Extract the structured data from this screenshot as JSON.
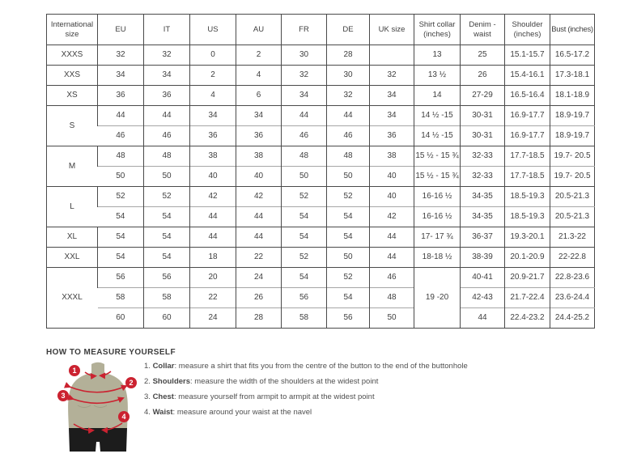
{
  "size_table": {
    "columns": [
      "International size",
      "EU",
      "IT",
      "US",
      "AU",
      "FR",
      "DE",
      "UK size",
      "Shirt collar (inches)",
      "Denim - waist",
      "Shoulder (inches)",
      "Bust (inches)"
    ],
    "rows": [
      {
        "sub": false,
        "cells": [
          {
            "t": "XXXS"
          },
          {
            "t": "32"
          },
          {
            "t": "32"
          },
          {
            "t": "0"
          },
          {
            "t": "2"
          },
          {
            "t": "30"
          },
          {
            "t": "28"
          },
          {
            "t": ""
          },
          {
            "t": "13"
          },
          {
            "t": "25"
          },
          {
            "t": "15.1-15.7"
          },
          {
            "t": "16.5-17.2"
          }
        ]
      },
      {
        "sub": false,
        "cells": [
          {
            "t": "XXS"
          },
          {
            "t": "34"
          },
          {
            "t": "34"
          },
          {
            "t": "2"
          },
          {
            "t": "4"
          },
          {
            "t": "32"
          },
          {
            "t": "30"
          },
          {
            "t": "32"
          },
          {
            "t": "13 ½"
          },
          {
            "t": "26"
          },
          {
            "t": "15.4-16.1"
          },
          {
            "t": "17.3-18.1"
          }
        ]
      },
      {
        "sub": false,
        "cells": [
          {
            "t": "XS"
          },
          {
            "t": "36"
          },
          {
            "t": "36"
          },
          {
            "t": "4"
          },
          {
            "t": "6"
          },
          {
            "t": "34"
          },
          {
            "t": "32"
          },
          {
            "t": "34"
          },
          {
            "t": "14"
          },
          {
            "t": "27-29"
          },
          {
            "t": "16.5-16.4"
          },
          {
            "t": "18.1-18.9"
          }
        ]
      },
      {
        "sub": false,
        "cells": [
          {
            "t": "S",
            "rs": 2
          },
          {
            "t": "44"
          },
          {
            "t": "44"
          },
          {
            "t": "34"
          },
          {
            "t": "34"
          },
          {
            "t": "44"
          },
          {
            "t": "44"
          },
          {
            "t": "34"
          },
          {
            "t": "14 ½ -15"
          },
          {
            "t": "30-31"
          },
          {
            "t": "16.9-17.7"
          },
          {
            "t": "18.9-19.7"
          }
        ]
      },
      {
        "sub": true,
        "cells": [
          {
            "t": "46"
          },
          {
            "t": "46"
          },
          {
            "t": "36"
          },
          {
            "t": "36"
          },
          {
            "t": "46"
          },
          {
            "t": "46"
          },
          {
            "t": "36"
          },
          {
            "t": "14 ½ -15"
          },
          {
            "t": "30-31"
          },
          {
            "t": "16.9-17.7"
          },
          {
            "t": "18.9-19.7"
          }
        ]
      },
      {
        "sub": false,
        "cells": [
          {
            "t": "M",
            "rs": 2
          },
          {
            "t": "48"
          },
          {
            "t": "48"
          },
          {
            "t": "38"
          },
          {
            "t": "38"
          },
          {
            "t": "48"
          },
          {
            "t": "48"
          },
          {
            "t": "38"
          },
          {
            "t": "15 ½ - 15 ¾"
          },
          {
            "t": "32-33"
          },
          {
            "t": "17.7-18.5"
          },
          {
            "t": "19.7- 20.5"
          }
        ]
      },
      {
        "sub": true,
        "cells": [
          {
            "t": "50"
          },
          {
            "t": "50"
          },
          {
            "t": "40"
          },
          {
            "t": "40"
          },
          {
            "t": "50"
          },
          {
            "t": "50"
          },
          {
            "t": "40"
          },
          {
            "t": "15 ½ - 15 ¾"
          },
          {
            "t": "32-33"
          },
          {
            "t": "17.7-18.5"
          },
          {
            "t": "19.7- 20.5"
          }
        ]
      },
      {
        "sub": false,
        "cells": [
          {
            "t": "L",
            "rs": 2
          },
          {
            "t": "52"
          },
          {
            "t": "52"
          },
          {
            "t": "42"
          },
          {
            "t": "42"
          },
          {
            "t": "52"
          },
          {
            "t": "52"
          },
          {
            "t": "40"
          },
          {
            "t": "16-16 ½"
          },
          {
            "t": "34-35"
          },
          {
            "t": "18.5-19.3"
          },
          {
            "t": "20.5-21.3"
          }
        ]
      },
      {
        "sub": true,
        "cells": [
          {
            "t": "54"
          },
          {
            "t": "54"
          },
          {
            "t": "44"
          },
          {
            "t": "44"
          },
          {
            "t": "54"
          },
          {
            "t": "54"
          },
          {
            "t": "42"
          },
          {
            "t": "16-16 ½"
          },
          {
            "t": "34-35"
          },
          {
            "t": "18.5-19.3"
          },
          {
            "t": "20.5-21.3"
          }
        ]
      },
      {
        "sub": false,
        "cells": [
          {
            "t": "XL"
          },
          {
            "t": "54"
          },
          {
            "t": "54"
          },
          {
            "t": "44"
          },
          {
            "t": "44"
          },
          {
            "t": "54"
          },
          {
            "t": "54"
          },
          {
            "t": "44"
          },
          {
            "t": "17- 17 ¾"
          },
          {
            "t": "36-37"
          },
          {
            "t": "19.3-20.1"
          },
          {
            "t": "21.3-22"
          }
        ]
      },
      {
        "sub": false,
        "cells": [
          {
            "t": "XXL"
          },
          {
            "t": "54"
          },
          {
            "t": "54"
          },
          {
            "t": "18"
          },
          {
            "t": "22"
          },
          {
            "t": "52"
          },
          {
            "t": "50"
          },
          {
            "t": "44"
          },
          {
            "t": "18-18 ½"
          },
          {
            "t": "38-39"
          },
          {
            "t": "20.1-20.9"
          },
          {
            "t": "22-22.8"
          }
        ]
      },
      {
        "sub": false,
        "cells": [
          {
            "t": "XXXL",
            "rs": 3
          },
          {
            "t": "56"
          },
          {
            "t": "56"
          },
          {
            "t": "20"
          },
          {
            "t": "24"
          },
          {
            "t": "54"
          },
          {
            "t": "52"
          },
          {
            "t": "46"
          },
          {
            "t": "19 -20",
            "rs": 3
          },
          {
            "t": "40-41"
          },
          {
            "t": "20.9-21.7"
          },
          {
            "t": "22.8-23.6"
          }
        ]
      },
      {
        "sub": true,
        "cells": [
          {
            "t": "58"
          },
          {
            "t": "58"
          },
          {
            "t": "22"
          },
          {
            "t": "26"
          },
          {
            "t": "56"
          },
          {
            "t": "54"
          },
          {
            "t": "48"
          },
          {
            "t": "42-43"
          },
          {
            "t": "21.7-22.4"
          },
          {
            "t": "23.6-24.4"
          }
        ]
      },
      {
        "sub": true,
        "cells": [
          {
            "t": "60"
          },
          {
            "t": "60"
          },
          {
            "t": "24"
          },
          {
            "t": "28"
          },
          {
            "t": "58"
          },
          {
            "t": "56"
          },
          {
            "t": "50"
          },
          {
            "t": "44"
          },
          {
            "t": "22.4-23.2"
          },
          {
            "t": "24.4-25.2"
          }
        ]
      }
    ]
  },
  "measure": {
    "heading": "HOW TO MEASURE YOURSELF",
    "steps": [
      {
        "num": "1. ",
        "label": "Collar",
        "rest": ": measure a shirt that fits you from the centre of the button to the end of the buttonhole"
      },
      {
        "num": "2. ",
        "label": "Shoulders",
        "rest": ": measure the width of the shoulders at the widest point"
      },
      {
        "num": "3. ",
        "label": "Chest",
        "rest": ": measure yourself from armpit to armpit at the widest point"
      },
      {
        "num": "4. ",
        "label": "Waist",
        "rest": ": measure around your waist at the navel"
      }
    ],
    "figure_markers": [
      "1",
      "2",
      "3",
      "4"
    ]
  },
  "colors": {
    "accent_red": "#cb2230",
    "mannequin_olive": "#b3b098",
    "shorts_black": "#1c1c1c",
    "border_dark": "#4a4a4a",
    "border_light": "#a6a6a6",
    "text": "#3f3f3f"
  }
}
